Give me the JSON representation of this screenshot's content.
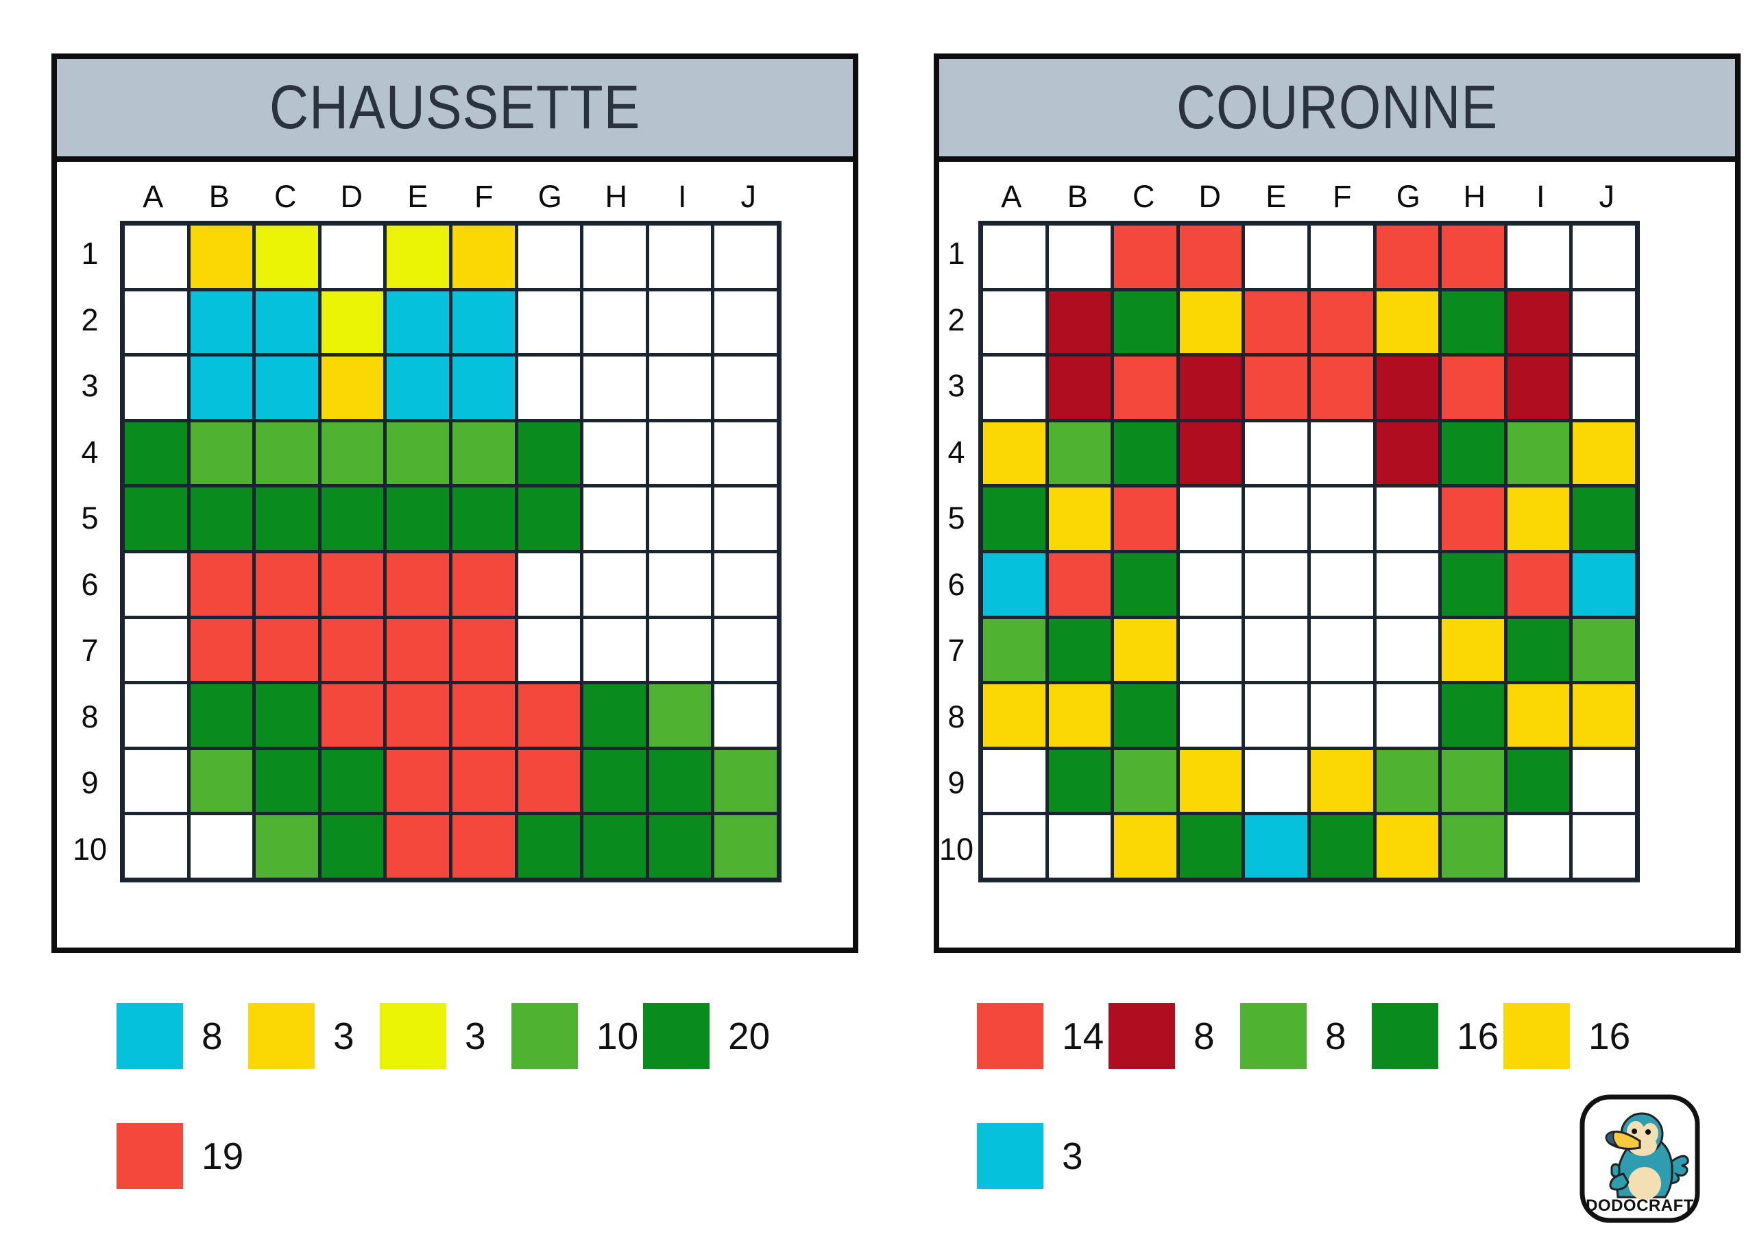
{
  "palette": {
    ".": {
      "name": "white",
      "hex": "#FFFFFF"
    },
    "c": {
      "name": "cyan",
      "hex": "#06C1DB"
    },
    "g": {
      "name": "gold-yellow",
      "hex": "#FBD703"
    },
    "l": {
      "name": "lemon-yellow",
      "hex": "#EAF303"
    },
    "p": {
      "name": "light-green",
      "hex": "#4FB331"
    },
    "d": {
      "name": "dark-green",
      "hex": "#098B1E"
    },
    "r": {
      "name": "red",
      "hex": "#F4483C"
    },
    "k": {
      "name": "dark-red",
      "hex": "#B00D21"
    }
  },
  "panels": [
    {
      "title": "CHAUSSETTE",
      "columns": [
        "A",
        "B",
        "C",
        "D",
        "E",
        "F",
        "G",
        "H",
        "I",
        "J"
      ],
      "rows": [
        "1",
        "2",
        "3",
        "4",
        "5",
        "6",
        "7",
        "8",
        "9",
        "10"
      ],
      "grid": [
        ".gl.lg....",
        ".cclcc....",
        ".ccgcc....",
        "dpppppd...",
        "ddddddd...",
        ".rrrrr....",
        ".rrrrr....",
        ".ddrrrrdp.",
        ".pddrrrddp",
        "..pdrrdddp"
      ],
      "legend_rows": [
        [
          {
            "color": "c",
            "count": "8"
          },
          {
            "color": "g",
            "count": "3"
          },
          {
            "color": "l",
            "count": "3"
          },
          {
            "color": "p",
            "count": "10"
          },
          {
            "color": "d",
            "count": "20"
          }
        ],
        [
          {
            "color": "r",
            "count": "19"
          }
        ]
      ]
    },
    {
      "title": "COURONNE",
      "columns": [
        "A",
        "B",
        "C",
        "D",
        "E",
        "F",
        "G",
        "H",
        "I",
        "J"
      ],
      "rows": [
        "1",
        "2",
        "3",
        "4",
        "5",
        "6",
        "7",
        "8",
        "9",
        "10"
      ],
      "grid": [
        "..rr..rr..",
        ".kdgrrgdk.",
        ".krkrrkrk.",
        "gpdk..kdpg",
        "dgr....rgd",
        "crd....drc",
        "pdg....gdp",
        "ggd....dgg",
        ".dpg.gppd.",
        "..gdcdgp.."
      ],
      "legend_rows": [
        [
          {
            "color": "r",
            "count": "14"
          },
          {
            "color": "k",
            "count": "8"
          },
          {
            "color": "p",
            "count": "8"
          },
          {
            "color": "d",
            "count": "16"
          },
          {
            "color": "g",
            "count": "16"
          }
        ],
        [
          {
            "color": "c",
            "count": "3"
          }
        ]
      ]
    }
  ],
  "header_bg": "#B6C3CE",
  "grid_line_color": "#1B2531",
  "logo": {
    "brand": "DODOCRAFT"
  }
}
